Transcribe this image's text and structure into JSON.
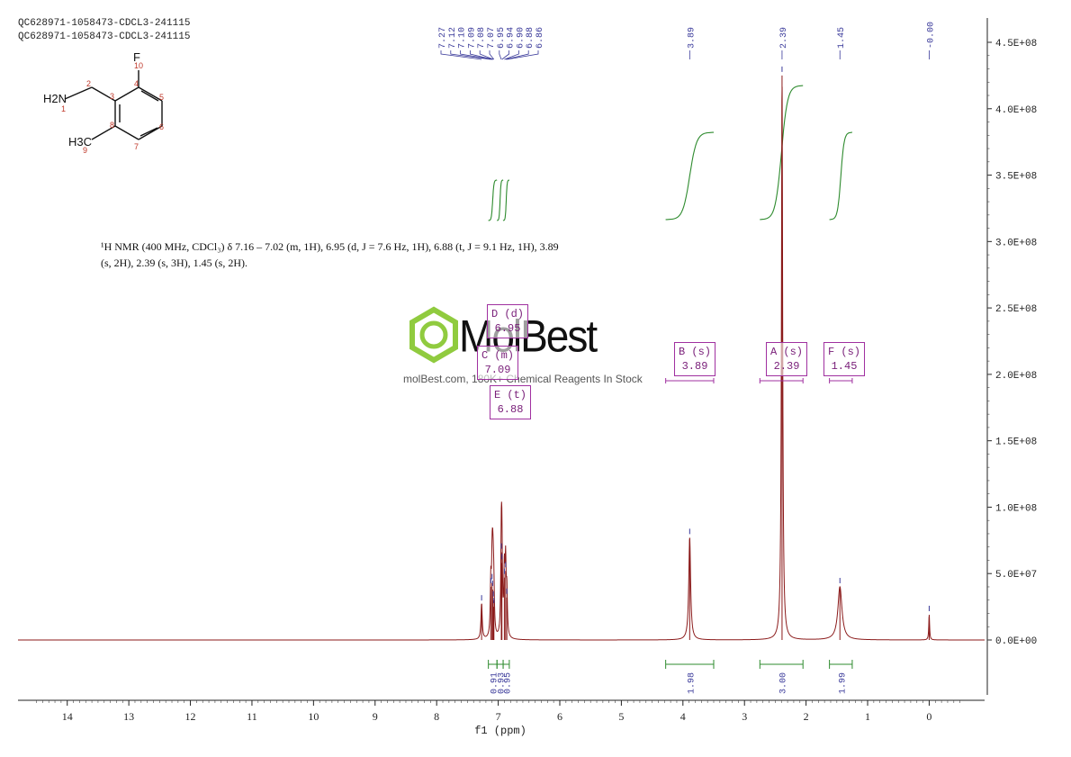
{
  "header": {
    "line1": "QC628971-1058473-CDCL3-241115",
    "line2": "QC628971-1058473-CDCL3-241115"
  },
  "nmr_text": {
    "line1": "¹H NMR (400 MHz, CDCl₃) δ 7.16 – 7.02 (m, 1H), 6.95 (d, J = 7.6 Hz, 1H), 6.88 (t, J = 9.1 Hz, 1H), 3.89",
    "line2": "(s, 2H), 2.39 (s, 3H), 1.45 (s, 2H)."
  },
  "watermark": {
    "brand": "MolBest",
    "tagline": "molBest.com, 180K+ Chemical Reagents In Stock"
  },
  "structure": {
    "atoms": [
      "F",
      "H2N",
      "H3C"
    ],
    "numbers": [
      "1",
      "2",
      "3",
      "4",
      "5",
      "6",
      "7",
      "8",
      "9",
      "10"
    ]
  },
  "peak_boxes": [
    {
      "id": "D",
      "label": "D (d)",
      "value": "6.95"
    },
    {
      "id": "C",
      "label": "C (m)",
      "value": "7.09"
    },
    {
      "id": "E",
      "label": "E (t)",
      "value": "6.88"
    },
    {
      "id": "B",
      "label": "B (s)",
      "value": "3.89"
    },
    {
      "id": "A",
      "label": "A (s)",
      "value": "2.39"
    },
    {
      "id": "F",
      "label": "F (s)",
      "value": "1.45"
    }
  ],
  "colors": {
    "spectrum": "#8b1a1a",
    "integral": "#2e8b2e",
    "peak_label": "#3a3a9a",
    "box": "#a030a0",
    "logo_green": "#7dc21e"
  },
  "chart_data": {
    "type": "line",
    "xlabel": "f1 (ppm)",
    "xlim": [
      14.8,
      -0.9
    ],
    "x_reversed": true,
    "x_ticks": [
      14,
      13,
      12,
      11,
      10,
      9,
      8,
      7,
      6,
      5,
      4,
      3,
      2,
      1,
      0
    ],
    "ylim": [
      -50000000.0,
      460000000.0
    ],
    "y_ticks": [
      {
        "value": 0,
        "label": "0.0E+00"
      },
      {
        "value": 50000000.0,
        "label": "5.0E+07"
      },
      {
        "value": 100000000.0,
        "label": "1.0E+08"
      },
      {
        "value": 150000000.0,
        "label": "1.5E+08"
      },
      {
        "value": 200000000.0,
        "label": "2.0E+08"
      },
      {
        "value": 250000000.0,
        "label": "2.5E+08"
      },
      {
        "value": 300000000.0,
        "label": "3.0E+08"
      },
      {
        "value": 350000000.0,
        "label": "3.5E+08"
      },
      {
        "value": 400000000.0,
        "label": "4.0E+08"
      },
      {
        "value": 450000000.0,
        "label": "4.5E+08"
      }
    ],
    "y_axis_position": "right",
    "peaks": [
      {
        "ppm": 7.27,
        "height": 27000000.0,
        "width": 0.012
      },
      {
        "ppm": 7.12,
        "height": 40000000.0,
        "width": 0.01
      },
      {
        "ppm": 7.1,
        "height": 43000000.0,
        "width": 0.01
      },
      {
        "ppm": 7.09,
        "height": 38000000.0,
        "width": 0.01
      },
      {
        "ppm": 7.08,
        "height": 30000000.0,
        "width": 0.01
      },
      {
        "ppm": 7.07,
        "height": 25000000.0,
        "width": 0.01
      },
      {
        "ppm": 6.95,
        "height": 66000000.0,
        "width": 0.01
      },
      {
        "ppm": 6.94,
        "height": 58000000.0,
        "width": 0.01
      },
      {
        "ppm": 6.9,
        "height": 47000000.0,
        "width": 0.01
      },
      {
        "ppm": 6.88,
        "height": 52000000.0,
        "width": 0.01
      },
      {
        "ppm": 6.86,
        "height": 32000000.0,
        "width": 0.01
      },
      {
        "ppm": 3.89,
        "height": 77000000.0,
        "width": 0.018
      },
      {
        "ppm": 2.39,
        "height": 425000000.0,
        "width": 0.012
      },
      {
        "ppm": 1.45,
        "height": 40000000.0,
        "width": 0.04
      },
      {
        "ppm": 0.0,
        "height": 19000000.0,
        "width": 0.008
      }
    ],
    "peak_labels": [
      "7.27",
      "7.12",
      "7.10",
      "7.09",
      "7.08",
      "7.07",
      "6.95",
      "6.94",
      "6.90",
      "6.88",
      "6.86",
      "3.89",
      "2.39",
      "1.45",
      "-0.00"
    ],
    "integrals": [
      {
        "from": 7.16,
        "to": 7.02,
        "value": "0.91"
      },
      {
        "from": 7.02,
        "to": 6.92,
        "value": "0.93"
      },
      {
        "from": 6.92,
        "to": 6.82,
        "value": "0.95"
      },
      {
        "from": 4.28,
        "to": 3.5,
        "value": "1.98"
      },
      {
        "from": 2.75,
        "to": 2.05,
        "value": "3.00"
      },
      {
        "from": 1.62,
        "to": 1.25,
        "value": "1.99"
      }
    ]
  }
}
